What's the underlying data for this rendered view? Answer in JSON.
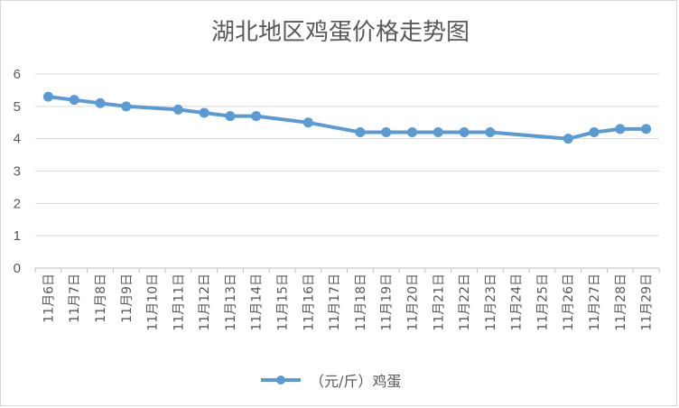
{
  "chart_data": {
    "type": "line",
    "title": "湖北地区鸡蛋价格走势图",
    "xlabel": "",
    "ylabel": "",
    "ylim": [
      0,
      6
    ],
    "yticks": [
      "0",
      "1",
      "2",
      "3",
      "4",
      "5",
      "6"
    ],
    "grid": true,
    "legend_position": "bottom",
    "categories": [
      "11月6日",
      "11月7日",
      "11月8日",
      "11月9日",
      "11月10日",
      "11月11日",
      "11月12日",
      "11月13日",
      "11月14日",
      "11月15日",
      "11月16日",
      "11月17日",
      "11月18日",
      "11月19日",
      "11月20日",
      "11月21日",
      "11月22日",
      "11月23日",
      "11月24日",
      "11月25日",
      "11月26日",
      "11月27日",
      "11月28日",
      "11月29日"
    ],
    "series": [
      {
        "name": "（元/斤）鸡蛋",
        "color": "#5b9bd5",
        "values": [
          5.3,
          5.2,
          5.1,
          5.0,
          null,
          4.9,
          4.8,
          4.7,
          4.7,
          null,
          4.5,
          null,
          4.2,
          4.2,
          4.2,
          4.2,
          4.2,
          4.2,
          null,
          null,
          4.0,
          4.2,
          4.3,
          4.3
        ]
      }
    ]
  }
}
